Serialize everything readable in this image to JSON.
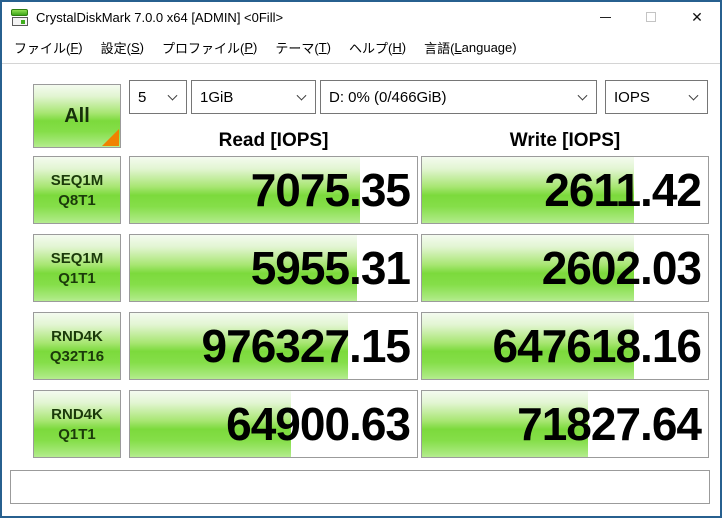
{
  "window": {
    "title": "CrystalDiskMark 7.0.0 x64 [ADMIN] <0Fill>"
  },
  "menu": {
    "items": [
      "ファイル(F)",
      "設定(S)",
      "プロファイル(P)",
      "テーマ(T)",
      "ヘルプ(H)",
      "言語(Language)"
    ]
  },
  "toolbar": {
    "all_button": "All",
    "test_count": "5",
    "test_size": "1GiB",
    "drive": "D: 0% (0/466GiB)",
    "unit": "IOPS"
  },
  "columns": {
    "read": "Read [IOPS]",
    "write": "Write [IOPS]"
  },
  "rows": [
    {
      "label_line1": "SEQ1M",
      "label_line2": "Q8T1",
      "read": "7075.35",
      "write": "2611.42",
      "read_fill": 80,
      "write_fill": 74
    },
    {
      "label_line1": "SEQ1M",
      "label_line2": "Q1T1",
      "read": "5955.31",
      "write": "2602.03",
      "read_fill": 79,
      "write_fill": 74
    },
    {
      "label_line1": "RND4K",
      "label_line2": "Q32T16",
      "read": "976327.15",
      "write": "647618.16",
      "read_fill": 76,
      "write_fill": 74
    },
    {
      "label_line1": "RND4K",
      "label_line2": "Q1T1",
      "read": "64900.63",
      "write": "71827.64",
      "read_fill": 56,
      "write_fill": 58
    }
  ],
  "comment_box": {
    "value": ""
  },
  "colors": {
    "accent_green": "#7cda3c",
    "profile_triangle": "#f08200",
    "window_border": "#27608f"
  }
}
